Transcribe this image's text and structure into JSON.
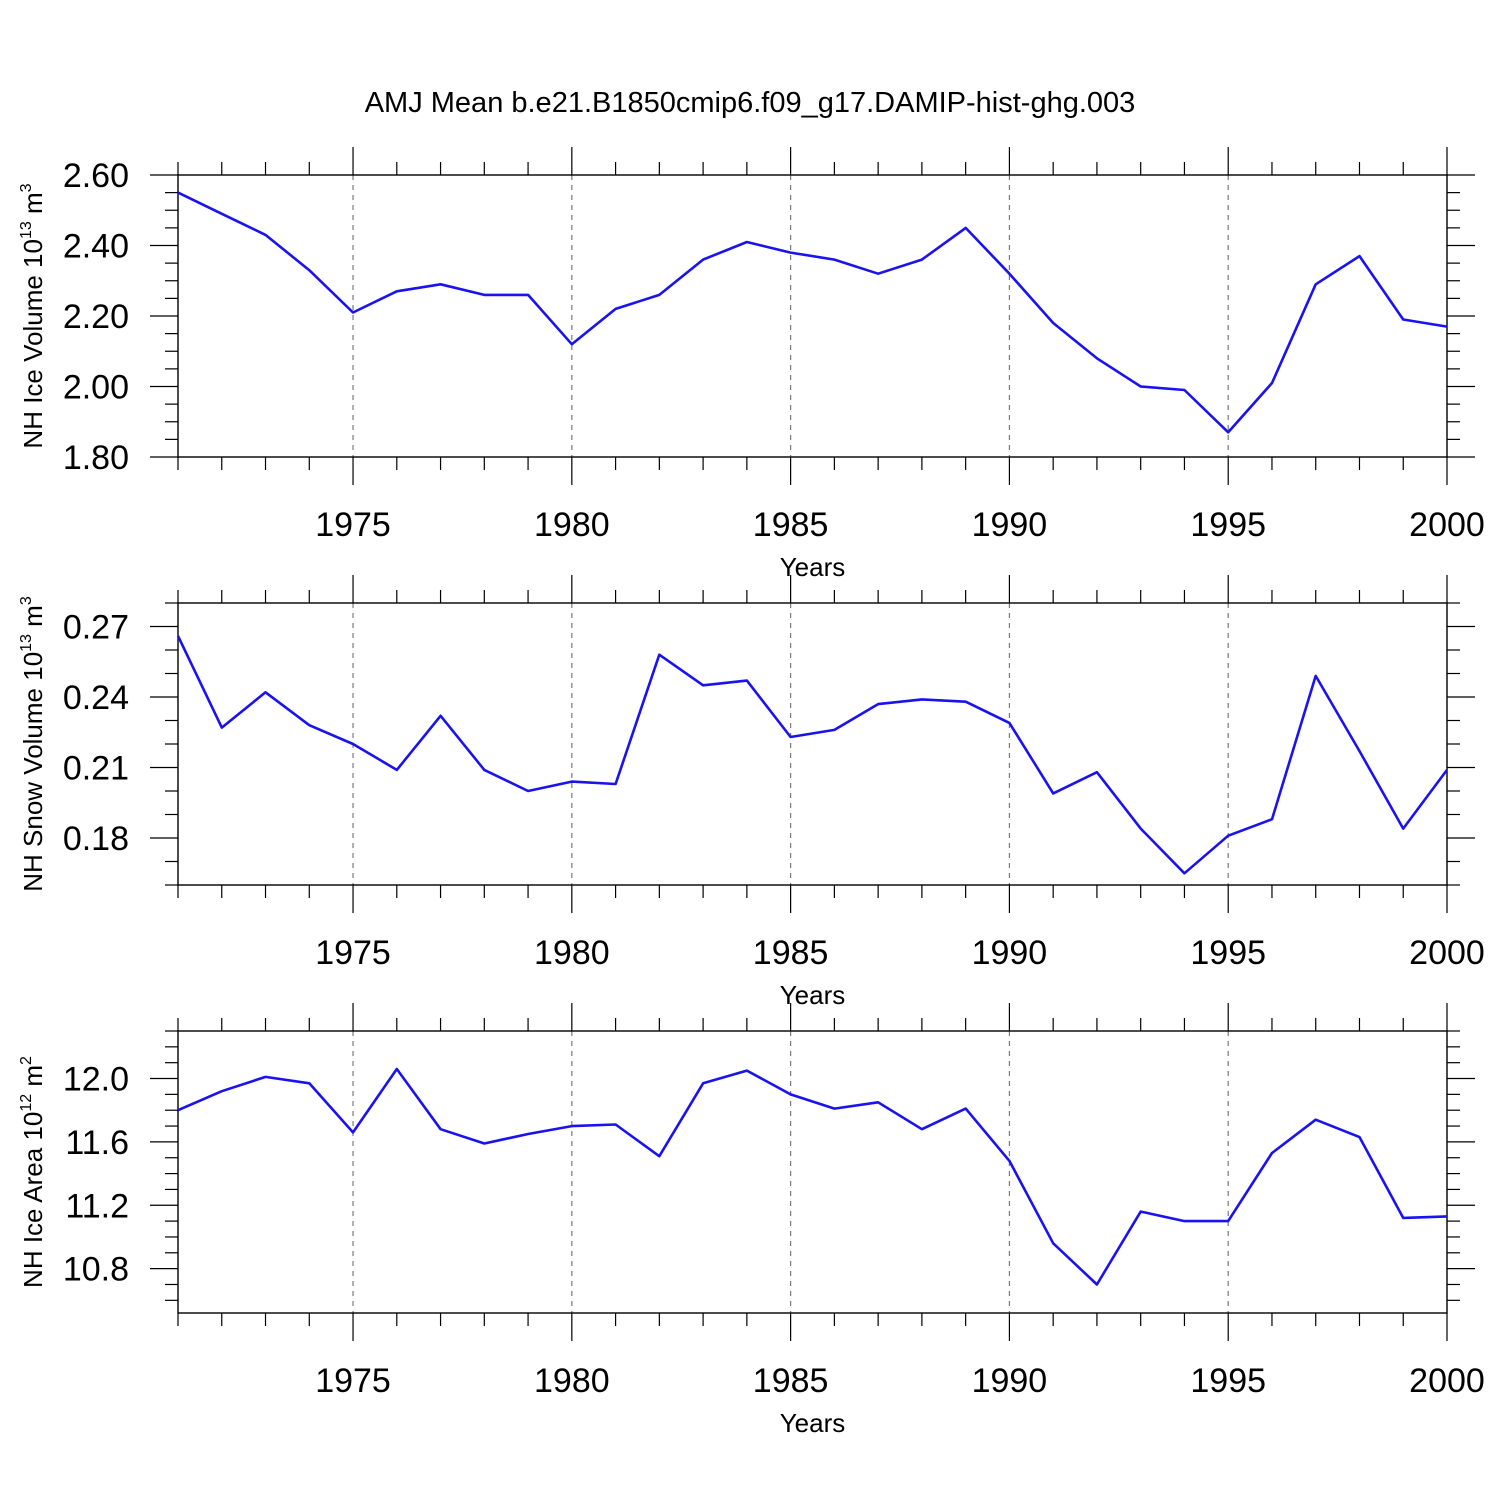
{
  "title": "AMJ Mean b.e21.B1850cmip6.f09_g17.DAMIP-hist-ghg.003",
  "colors": {
    "line": "#1a12f0",
    "axes": "#000000",
    "grid": "#7a7a7a",
    "background": "#ffffff"
  },
  "chart_data": [
    {
      "type": "line",
      "ylabel": {
        "text": "NH Ice Volume 10",
        "sup": "13",
        "unit": " m",
        "unit_sup": "3"
      },
      "xlabel": "Years",
      "xlim": [
        1971,
        2000
      ],
      "ylim": [
        1.8,
        2.6
      ],
      "yticks": [
        1.8,
        2.0,
        2.2,
        2.4,
        2.6
      ],
      "ytick_labels": [
        "1.80",
        "2.00",
        "2.20",
        "2.40",
        "2.60"
      ],
      "yminor_step": 0.05,
      "xticks": [
        1975,
        1980,
        1985,
        1990,
        1995,
        2000
      ],
      "xtick_labels": [
        "1975",
        "1980",
        "1985",
        "1990",
        "1995",
        "2000"
      ],
      "grid": "vertical dashed at major x ticks",
      "x": [
        1971,
        1972,
        1973,
        1974,
        1975,
        1976,
        1977,
        1978,
        1979,
        1980,
        1981,
        1982,
        1983,
        1984,
        1985,
        1986,
        1987,
        1988,
        1989,
        1990,
        1991,
        1992,
        1993,
        1994,
        1995,
        1996,
        1997,
        1998,
        1999,
        2000
      ],
      "y": [
        2.55,
        2.49,
        2.43,
        2.33,
        2.21,
        2.27,
        2.29,
        2.26,
        2.26,
        2.12,
        2.22,
        2.26,
        2.36,
        2.41,
        2.38,
        2.36,
        2.32,
        2.36,
        2.45,
        2.32,
        2.18,
        2.08,
        2.0,
        1.99,
        1.87,
        2.01,
        2.29,
        2.37,
        2.19,
        2.17
      ]
    },
    {
      "type": "line",
      "ylabel": {
        "text": "NH Snow Volume 10",
        "sup": "13",
        "unit": " m",
        "unit_sup": "3"
      },
      "xlabel": "Years",
      "xlim": [
        1971,
        2000
      ],
      "ylim": [
        0.16,
        0.28
      ],
      "yticks": [
        0.18,
        0.21,
        0.24,
        0.27
      ],
      "ytick_labels": [
        "0.18",
        "0.21",
        "0.24",
        "0.27"
      ],
      "yminor_step": 0.01,
      "xticks": [
        1975,
        1980,
        1985,
        1990,
        1995,
        2000
      ],
      "xtick_labels": [
        "1975",
        "1980",
        "1985",
        "1990",
        "1995",
        "2000"
      ],
      "grid": "vertical dashed at major x ticks",
      "x": [
        1971,
        1972,
        1973,
        1974,
        1975,
        1976,
        1977,
        1978,
        1979,
        1980,
        1981,
        1982,
        1983,
        1984,
        1985,
        1986,
        1987,
        1988,
        1989,
        1990,
        1991,
        1992,
        1993,
        1994,
        1995,
        1996,
        1997,
        1998,
        1999,
        2000
      ],
      "y": [
        0.266,
        0.227,
        0.242,
        0.228,
        0.22,
        0.209,
        0.232,
        0.209,
        0.2,
        0.204,
        0.203,
        0.258,
        0.245,
        0.247,
        0.223,
        0.226,
        0.237,
        0.239,
        0.238,
        0.229,
        0.199,
        0.208,
        0.184,
        0.165,
        0.181,
        0.188,
        0.249,
        0.217,
        0.184,
        0.209
      ]
    },
    {
      "type": "line",
      "ylabel": {
        "text": "NH Ice Area 10",
        "sup": "12",
        "unit": " m",
        "unit_sup": "2"
      },
      "xlabel": "Years",
      "xlim": [
        1971,
        2000
      ],
      "ylim": [
        10.52,
        12.3
      ],
      "yticks": [
        10.8,
        11.2,
        11.6,
        12.0
      ],
      "ytick_labels": [
        "10.8",
        "11.2",
        "11.6",
        "12.0"
      ],
      "yminor_step": 0.1,
      "xticks": [
        1975,
        1980,
        1985,
        1990,
        1995,
        2000
      ],
      "xtick_labels": [
        "1975",
        "1980",
        "1985",
        "1990",
        "1995",
        "2000"
      ],
      "grid": "vertical dashed at major x ticks",
      "x": [
        1971,
        1972,
        1973,
        1974,
        1975,
        1976,
        1977,
        1978,
        1979,
        1980,
        1981,
        1982,
        1983,
        1984,
        1985,
        1986,
        1987,
        1988,
        1989,
        1990,
        1991,
        1992,
        1993,
        1994,
        1995,
        1996,
        1997,
        1998,
        1999,
        2000
      ],
      "y": [
        11.8,
        11.92,
        12.01,
        11.97,
        11.66,
        12.06,
        11.68,
        11.59,
        11.65,
        11.7,
        11.71,
        11.51,
        11.97,
        12.05,
        11.9,
        11.81,
        11.85,
        11.68,
        11.81,
        11.48,
        10.96,
        10.7,
        11.16,
        11.1,
        11.1,
        11.53,
        11.74,
        11.63,
        11.12,
        11.13
      ]
    }
  ]
}
